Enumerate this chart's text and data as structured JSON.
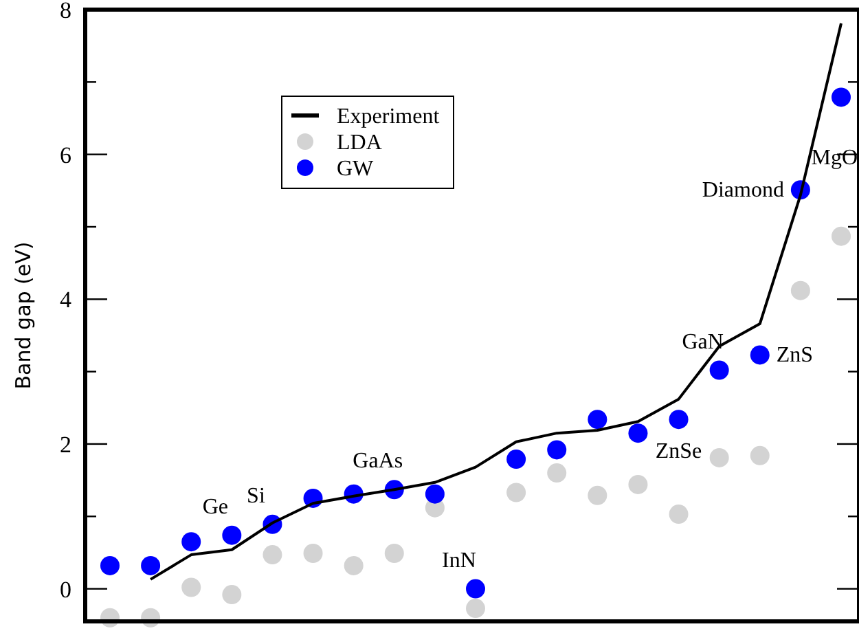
{
  "chart_data": {
    "type": "scatter",
    "ylabel": "Band gap (eV)",
    "categories": [
      null,
      null,
      null,
      null,
      null,
      null,
      null,
      null,
      null,
      null,
      null,
      null,
      null,
      null,
      null,
      null,
      null,
      null,
      null
    ],
    "ylim": [
      -0.45,
      8
    ],
    "yticks": [
      0,
      {
        "value": 1,
        "label": null
      },
      2,
      {
        "value": 3,
        "label": null
      },
      4,
      {
        "value": 5,
        "label": null
      },
      6,
      {
        "value": 7,
        "label": null
      },
      8
    ],
    "tick_labels": "y",
    "grid": false,
    "legend": "top left",
    "marker": "circle",
    "series": [
      {
        "name": "Experiment",
        "type": "line",
        "color": "#000000",
        "line_style": "solid",
        "marker": "none",
        "values": [
          null,
          0.13,
          0.47,
          0.54,
          0.91,
          1.18,
          1.28,
          1.37,
          1.47,
          1.68,
          2.03,
          2.15,
          2.19,
          2.31,
          2.62,
          3.35,
          3.66,
          5.44,
          7.81
        ]
      },
      {
        "name": "LDA",
        "color": "#d3d3d3",
        "values": [
          -0.4,
          -0.4,
          0.02,
          -0.08,
          0.47,
          0.49,
          0.32,
          0.49,
          1.12,
          -0.27,
          1.33,
          1.6,
          1.29,
          1.44,
          1.03,
          1.81,
          1.84,
          4.12,
          4.87
        ]
      },
      {
        "name": "GW",
        "color": "#0000ff",
        "values": [
          0.32,
          0.32,
          0.65,
          0.74,
          0.89,
          1.25,
          1.31,
          1.37,
          1.31,
          0.0,
          1.79,
          1.92,
          2.34,
          2.15,
          2.34,
          3.02,
          3.23,
          5.51,
          6.79
        ]
      }
    ],
    "annotations": [
      "Ge",
      "Si",
      "GaAs",
      "InN",
      "ZnSe",
      "GaN",
      "ZnS",
      "Diamond",
      "MgO"
    ]
  }
}
